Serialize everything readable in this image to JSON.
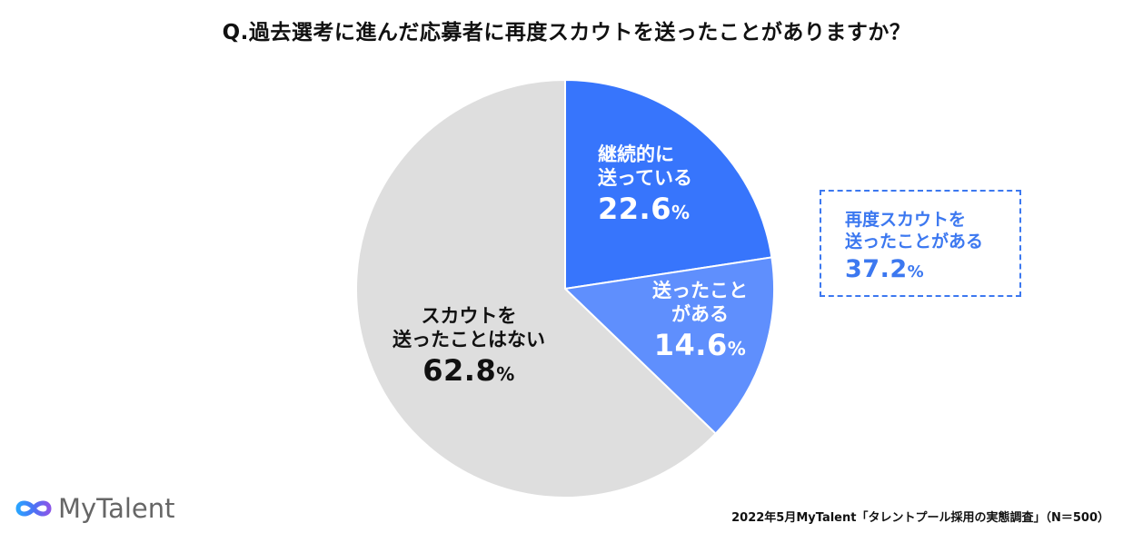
{
  "title": "Q.過去選考に進んだ応募者に再度スカウトを送ったことがありますか？",
  "chart_data": {
    "type": "pie",
    "start_angle": "12 o'clock",
    "direction": "clockwise",
    "slices": [
      {
        "name_lines": [
          "継続的に",
          "送っている"
        ],
        "value": 22.6,
        "color": "#3775fc"
      },
      {
        "name_lines": [
          "送ったこと",
          "がある"
        ],
        "value": 14.6,
        "color": "#5f8ffd"
      },
      {
        "name_lines": [
          "スカウトを",
          "送ったことはない"
        ],
        "value": 62.8,
        "color": "#dedede"
      }
    ],
    "value_format": {
      "number_decimals": 1,
      "unit": "%"
    }
  },
  "labels": {
    "a": {
      "line1": "継続的に",
      "line2": "送っている",
      "value": "22.6",
      "unit": "%"
    },
    "b": {
      "line1": "送ったこと",
      "line2": "がある",
      "value": "14.6",
      "unit": "%"
    },
    "c": {
      "line1": "スカウトを",
      "line2": "送ったことはない",
      "value": "62.8",
      "unit": "%"
    }
  },
  "summary": {
    "line1": "再度スカウトを",
    "line2": "送ったことがある",
    "value": "37.2",
    "unit": "%",
    "color": "#3c78f0"
  },
  "logo": {
    "text": "MyTalent",
    "icon": "infinity-logo-icon"
  },
  "source": "2022年5月MyTalent「タレントプール採用の実態調査」（N＝500）"
}
